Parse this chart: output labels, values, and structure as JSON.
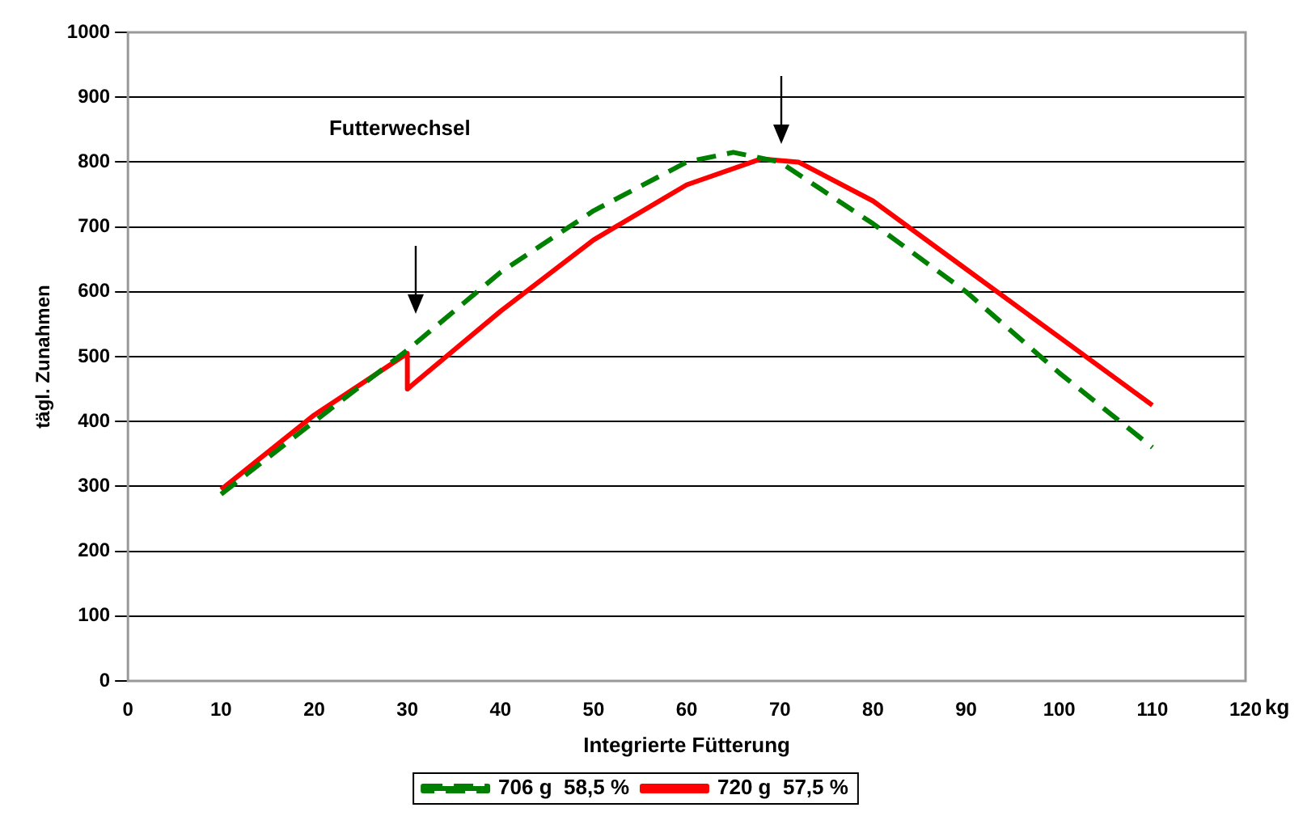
{
  "chart_data": {
    "type": "line",
    "xlabel": "Integrierte Fütterung",
    "ylabel": "tägl. Zunahmen",
    "annotations": [
      "Futterwechsel",
      "kg"
    ],
    "xlim": [
      0,
      120
    ],
    "xticks": [
      0,
      10,
      20,
      30,
      40,
      50,
      60,
      70,
      80,
      90,
      100,
      110,
      120
    ],
    "ylim": [
      0,
      1000
    ],
    "yticks": [
      0,
      100,
      200,
      300,
      400,
      500,
      600,
      700,
      800,
      900,
      1000
    ],
    "grid": "y",
    "legend": "bottom",
    "marker": "none",
    "series": [
      {
        "name": "706 g  58,5 %",
        "color": "#008000",
        "line_style": "dashed",
        "x": [
          10,
          20,
          30,
          40,
          50,
          60,
          65,
          70,
          80,
          90,
          100,
          110
        ],
        "values": [
          288,
          400,
          510,
          630,
          725,
          800,
          815,
          800,
          705,
          600,
          475,
          360
        ]
      },
      {
        "name": "720 g  57,5 %",
        "color": "#ff0000",
        "line_style": "solid",
        "x": [
          10,
          20,
          30,
          30,
          40,
          50,
          60,
          68,
          72,
          80,
          90,
          100,
          110
        ],
        "values": [
          295,
          410,
          505,
          450,
          570,
          680,
          765,
          805,
          800,
          740,
          635,
          530,
          425
        ]
      }
    ]
  }
}
